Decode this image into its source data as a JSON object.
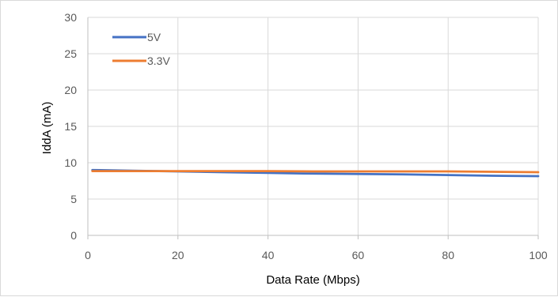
{
  "chart_data": {
    "type": "line",
    "title": "",
    "xlabel": "Data Rate (Mbps)",
    "ylabel": "IddA (mA)",
    "xlim": [
      0,
      100
    ],
    "ylim": [
      0,
      30
    ],
    "xticks": [
      0,
      20,
      40,
      60,
      80,
      100
    ],
    "yticks": [
      0,
      5,
      10,
      15,
      20,
      25,
      30
    ],
    "xtick_labels": [
      "0",
      "20",
      "40",
      "60",
      "80",
      "100"
    ],
    "ytick_labels": [
      "0",
      "5",
      "10",
      "15",
      "20",
      "25",
      "30"
    ],
    "grid": true,
    "legend_position": "top-left",
    "series": [
      {
        "name": "5V",
        "color": "#4472c4",
        "x": [
          1,
          10,
          20,
          30,
          40,
          50,
          60,
          70,
          80,
          90,
          100
        ],
        "y": [
          9.0,
          8.9,
          8.8,
          8.7,
          8.6,
          8.5,
          8.45,
          8.4,
          8.3,
          8.2,
          8.15
        ]
      },
      {
        "name": "3.3V",
        "color": "#ed7d31",
        "x": [
          1,
          10,
          20,
          30,
          40,
          50,
          60,
          70,
          80,
          90,
          100
        ],
        "y": [
          8.85,
          8.85,
          8.85,
          8.85,
          8.85,
          8.8,
          8.8,
          8.8,
          8.8,
          8.75,
          8.7
        ]
      }
    ]
  }
}
